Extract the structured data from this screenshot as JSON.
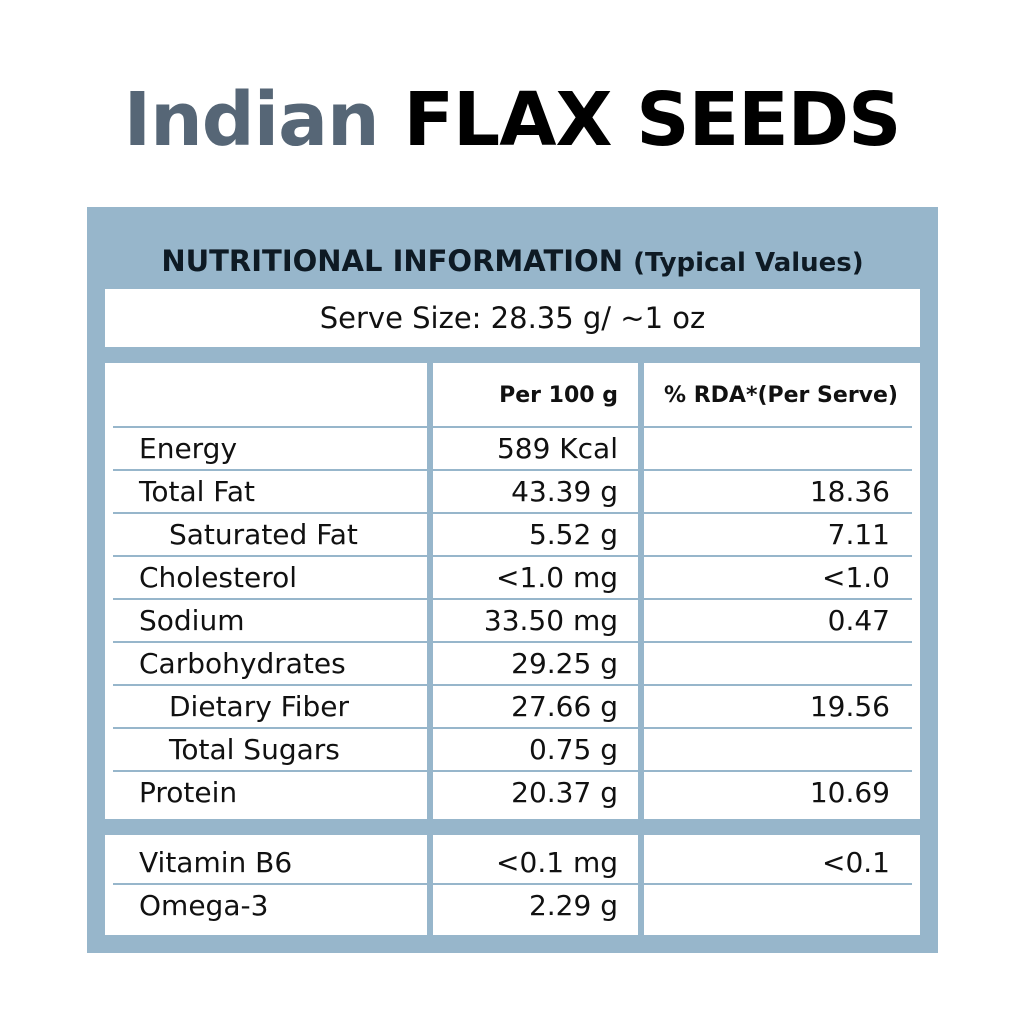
{
  "title": {
    "part1": "Indian",
    "part2": "FLAX SEEDS"
  },
  "panel": {
    "heading": "NUTRITIONAL INFORMATION",
    "heading_sub": "(Typical Values)",
    "serve_size": "Serve Size: 28.35 g/ ~1 oz"
  },
  "table": {
    "columns": [
      "",
      "Per 100 g",
      "% RDA*(Per Serve)"
    ],
    "rows": [
      {
        "name": "Energy",
        "per_100g": "589 Kcal",
        "rda": ""
      },
      {
        "name": "Total Fat",
        "per_100g": "43.39 g",
        "rda": "18.36"
      },
      {
        "name": "Saturated Fat",
        "per_100g": "5.52 g",
        "rda": "7.11"
      },
      {
        "name": "Cholesterol",
        "per_100g": "<1.0 mg",
        "rda": "<1.0"
      },
      {
        "name": "Sodium",
        "per_100g": "33.50 mg",
        "rda": "0.47"
      },
      {
        "name": "Carbohydrates",
        "per_100g": "29.25 g",
        "rda": ""
      },
      {
        "name": "Dietary Fiber",
        "per_100g": "27.66 g",
        "rda": "19.56"
      },
      {
        "name": "Total Sugars",
        "per_100g": "0.75 g",
        "rda": ""
      },
      {
        "name": "Protein",
        "per_100g": "20.37 g",
        "rda": "10.69"
      }
    ],
    "extra_rows": [
      {
        "name": "Vitamin B6",
        "per_100g": "<0.1 mg",
        "rda": "<0.1"
      },
      {
        "name": "Omega-3",
        "per_100g": "2.29 g",
        "rda": ""
      }
    ]
  },
  "colors": {
    "panel_blue": "#97b6cb",
    "title_gray": "#566676",
    "text_dark": "#111111"
  }
}
